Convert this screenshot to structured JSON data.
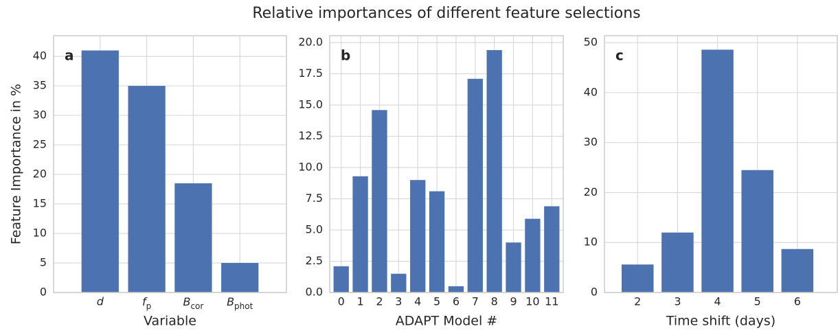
{
  "title": "Relative importances of different feature selections",
  "chart_data": [
    {
      "type": "bar",
      "annotation": "a",
      "xlabel": "Variable",
      "ylabel": "Feature Importance in %",
      "categories": [
        "d",
        "f_p",
        "B_cor",
        "B_phot"
      ],
      "values": [
        41,
        35,
        18.5,
        5
      ],
      "color": "#4c72b0",
      "xlim": [
        -1,
        4
      ],
      "ylim": [
        0,
        43.5
      ],
      "yticks": [
        0,
        5,
        10,
        15,
        20,
        25,
        30,
        35,
        40
      ],
      "grid": true
    },
    {
      "type": "bar",
      "annotation": "b",
      "xlabel": "ADAPT Model #",
      "x": [
        0,
        1,
        2,
        3,
        4,
        5,
        6,
        7,
        8,
        9,
        10,
        11
      ],
      "values": [
        2.1,
        9.3,
        14.6,
        1.5,
        9.0,
        8.1,
        0.5,
        17.1,
        19.4,
        4.0,
        5.9,
        6.9
      ],
      "color": "#4c72b0",
      "xlim": [
        -0.6,
        11.6
      ],
      "xticks": [
        0,
        1,
        2,
        3,
        4,
        5,
        6,
        7,
        8,
        9,
        10,
        11
      ],
      "ylim": [
        0,
        20.55
      ],
      "yticks": [
        {
          "value": 0,
          "label": "0.0"
        },
        2.5,
        {
          "value": 5,
          "label": "5.0"
        },
        7.5,
        {
          "value": 10,
          "label": "10.0"
        },
        12.5,
        {
          "value": 15,
          "label": "15.0"
        },
        17.5,
        {
          "value": 20,
          "label": "20.0"
        }
      ],
      "grid": true
    },
    {
      "type": "bar",
      "annotation": "c",
      "xlabel": "Time shift (days)",
      "x": [
        2,
        3,
        4,
        5,
        6
      ],
      "values": [
        5.6,
        12.0,
        48.6,
        24.5,
        8.7
      ],
      "color": "#4c72b0",
      "xlim": [
        1.17,
        7.0
      ],
      "xticks": [
        2,
        3,
        4,
        5,
        6
      ],
      "ylim": [
        0,
        51.4
      ],
      "yticks": [
        0,
        10,
        20,
        30,
        40,
        50
      ],
      "grid": true
    }
  ]
}
